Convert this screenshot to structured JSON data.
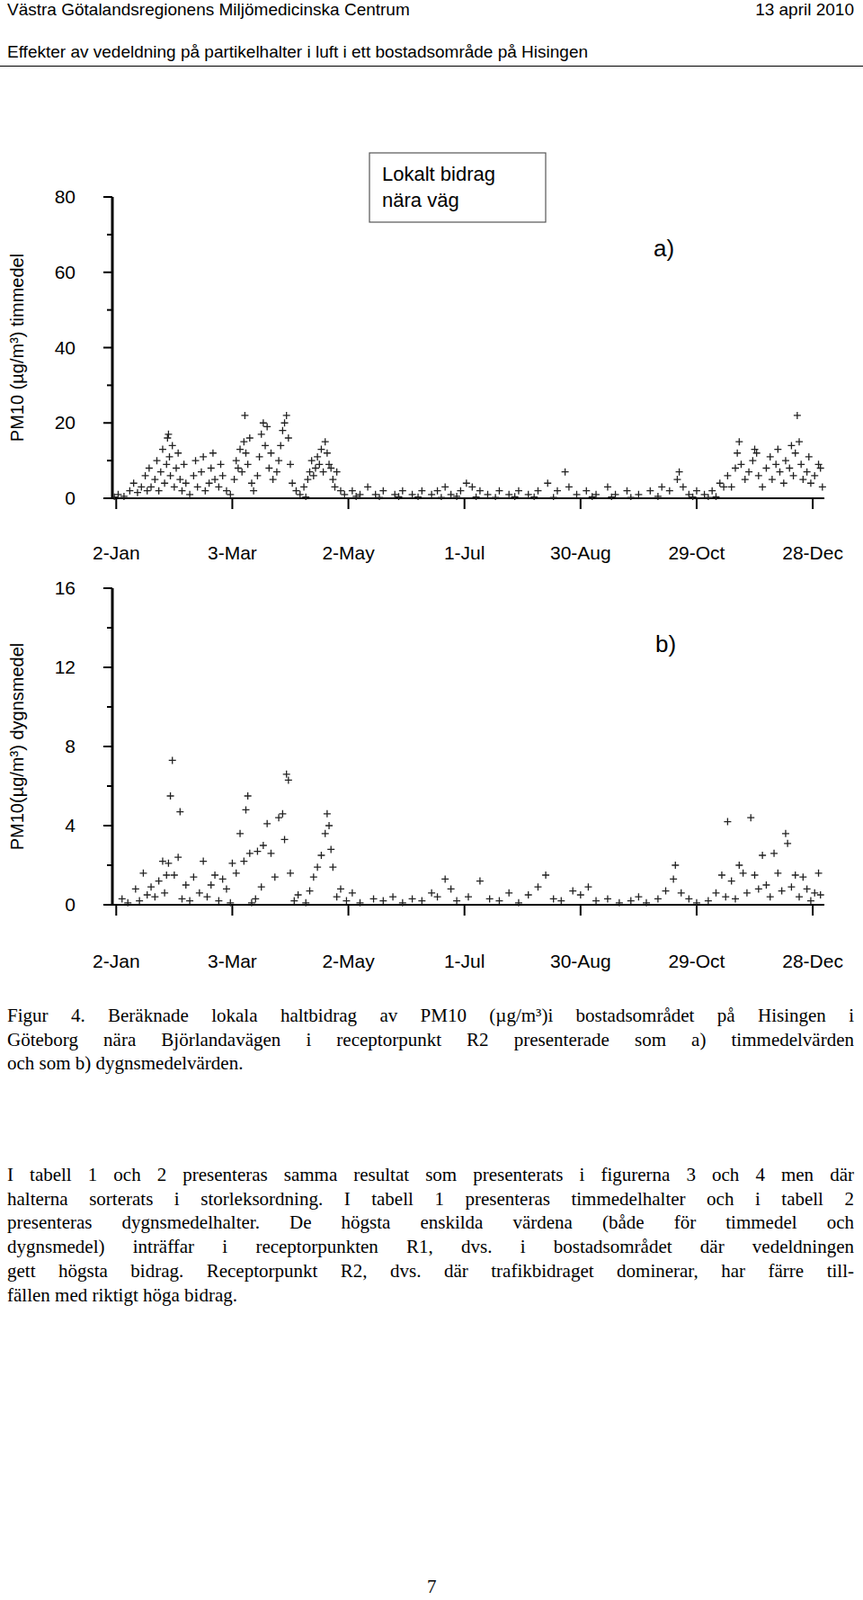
{
  "header": {
    "org": "Västra Götalandsregionens Miljömedicinska Centrum",
    "date": "13 april 2010",
    "subtitle": "Effekter av vedeldning på partikelhalter i luft i ett bostadsområde på Hisingen"
  },
  "chart_data": [
    {
      "type": "scatter",
      "title": "Lokalt bidrag\nnära väg",
      "annotation": "a)",
      "ylabel": "PM10 (µg/m³) timmedel",
      "marker": "plus",
      "color": "#222222",
      "xlim": [
        0,
        368
      ],
      "ylim": [
        0,
        80
      ],
      "xticks": [
        {
          "value": 2,
          "label": "2-Jan"
        },
        {
          "value": 62,
          "label": "3-Mar"
        },
        {
          "value": 122,
          "label": "2-May"
        },
        {
          "value": 182,
          "label": "1-Jul"
        },
        {
          "value": 242,
          "label": "30-Aug"
        },
        {
          "value": 302,
          "label": "29-Oct"
        },
        {
          "value": 362,
          "label": "28-Dec"
        }
      ],
      "yticks": [
        0,
        20,
        40,
        60,
        80
      ],
      "x": [
        3,
        6,
        9,
        11,
        13,
        15,
        17,
        18,
        19,
        20,
        22,
        23,
        24,
        25,
        26,
        27,
        28,
        28.5,
        29,
        29.5,
        30,
        31,
        32,
        33,
        34,
        35,
        36,
        37,
        38,
        40,
        42,
        43,
        44,
        46,
        47,
        48,
        50,
        51,
        52,
        53,
        55,
        56,
        57,
        59,
        61,
        63,
        64,
        65,
        66,
        67,
        68,
        68.5,
        69,
        70,
        71,
        72,
        73,
        75,
        76,
        77,
        78,
        79,
        80,
        81,
        82,
        83,
        85,
        86,
        87,
        88,
        89,
        90,
        91,
        92,
        93,
        95,
        97,
        99,
        101,
        102,
        103,
        104,
        105,
        106,
        107,
        108,
        109,
        110,
        111,
        112,
        113,
        114,
        115,
        116,
        118,
        120,
        124,
        128,
        132,
        136,
        140,
        146,
        150,
        155,
        160,
        165,
        168,
        172,
        175,
        180,
        183,
        186,
        190,
        194,
        200,
        205,
        210,
        215,
        220,
        225,
        230,
        234,
        236,
        240,
        245,
        250,
        256,
        260,
        266,
        272,
        278,
        284,
        288,
        292,
        293,
        295,
        298,
        302,
        306,
        310,
        314,
        316,
        318,
        320,
        322,
        323,
        324,
        325,
        327,
        329,
        331,
        332,
        333,
        334,
        336,
        338,
        340,
        341,
        343,
        344,
        345,
        347,
        348,
        350,
        351,
        352,
        353,
        354,
        355,
        356,
        357,
        359,
        360,
        361,
        363,
        365,
        366,
        367,
        100,
        126,
        138,
        148,
        158,
        170,
        178,
        188,
        198,
        208,
        218,
        228,
        248,
        258,
        268,
        282,
        300,
        308,
        312,
        1
      ],
      "values": [
        1,
        0.5,
        2,
        4,
        1.5,
        3,
        6,
        2,
        8,
        3,
        5,
        10,
        2,
        7,
        13,
        4,
        9,
        16,
        17,
        11,
        6,
        14,
        3,
        8,
        12,
        5,
        2,
        9,
        4,
        1,
        6,
        10,
        3,
        7,
        11,
        2,
        4,
        8,
        12,
        5,
        3,
        9,
        6,
        2,
        1,
        5,
        10,
        8,
        13,
        7,
        15,
        22,
        12,
        9,
        16,
        4,
        2,
        6,
        11,
        17,
        20,
        14,
        19,
        8,
        12,
        5,
        7,
        10,
        14,
        18,
        20,
        22,
        16,
        9,
        4,
        2,
        1,
        3,
        5,
        7,
        10,
        6,
        8,
        11,
        9,
        13,
        7,
        15,
        12,
        9,
        8,
        5,
        3,
        7,
        2,
        1,
        2,
        1,
        3,
        1,
        2,
        1,
        2,
        1,
        2,
        1,
        2,
        3,
        1,
        2,
        4,
        3,
        2,
        1,
        2,
        1,
        2,
        1,
        2,
        4,
        2,
        7,
        3,
        1,
        2,
        1,
        3,
        1,
        2,
        1,
        2,
        3,
        2,
        5,
        7,
        3,
        1,
        2,
        1,
        2,
        4,
        3,
        6,
        3,
        8,
        12,
        15,
        9,
        5,
        7,
        10,
        13,
        12,
        6,
        3,
        8,
        11,
        5,
        9,
        13,
        7,
        4,
        10,
        8,
        14,
        6,
        12,
        22,
        15,
        9,
        5,
        7,
        11,
        4,
        6,
        9,
        8,
        3,
        0.3,
        0.5,
        0.2,
        0.4,
        0.3,
        0.2,
        0.5,
        0.3,
        0.2,
        0.4,
        0.3,
        0.2,
        0.4,
        0.3,
        0.2,
        0.5,
        0.3,
        0.2,
        0.4,
        0.3
      ]
    },
    {
      "type": "scatter",
      "annotation": "b)",
      "ylabel": "PM10(µg/m³) dygnsmedel",
      "marker": "plus",
      "color": "#222222",
      "xlim": [
        0,
        368
      ],
      "ylim": [
        0,
        16
      ],
      "xticks": [
        {
          "value": 2,
          "label": "2-Jan"
        },
        {
          "value": 62,
          "label": "3-Mar"
        },
        {
          "value": 122,
          "label": "2-May"
        },
        {
          "value": 182,
          "label": "1-Jul"
        },
        {
          "value": 242,
          "label": "30-Aug"
        },
        {
          "value": 302,
          "label": "29-Oct"
        },
        {
          "value": 362,
          "label": "28-Dec"
        }
      ],
      "yticks": [
        0,
        4,
        8,
        12,
        16
      ],
      "x": [
        5,
        8,
        12,
        14,
        16,
        18,
        20,
        22,
        24,
        26,
        27,
        28,
        29,
        30,
        31,
        32,
        34,
        35,
        36,
        38,
        40,
        42,
        45,
        47,
        49,
        51,
        53,
        55,
        57,
        59,
        61,
        62,
        64,
        66,
        68,
        69,
        70,
        71,
        72,
        74,
        75,
        77,
        78,
        80,
        82,
        84,
        86,
        88,
        89,
        90,
        91,
        92,
        94,
        96,
        100,
        102,
        104,
        106,
        108,
        110,
        111,
        112,
        113,
        114,
        116,
        118,
        121,
        124,
        128,
        135,
        140,
        145,
        150,
        155,
        160,
        165,
        168,
        172,
        175,
        178,
        184,
        190,
        195,
        200,
        205,
        210,
        215,
        220,
        224,
        228,
        232,
        238,
        242,
        246,
        250,
        256,
        262,
        268,
        272,
        276,
        282,
        286,
        290,
        291,
        294,
        298,
        302,
        308,
        312,
        315,
        317,
        318,
        320,
        322,
        324,
        326,
        328,
        330,
        332,
        334,
        336,
        338,
        340,
        342,
        344,
        346,
        348,
        349,
        351,
        353,
        355,
        357,
        359,
        361,
        363,
        365,
        366
      ],
      "values": [
        0.3,
        0.1,
        0.8,
        0.2,
        1.6,
        0.5,
        0.9,
        0.4,
        1.2,
        2.2,
        0.6,
        1.5,
        2.1,
        5.5,
        7.3,
        1.5,
        2.4,
        4.7,
        0.3,
        1.0,
        0.2,
        1.4,
        0.6,
        2.2,
        0.4,
        1.0,
        1.5,
        0.2,
        1.3,
        0.8,
        0.1,
        2.1,
        1.6,
        3.6,
        2.2,
        4.8,
        5.5,
        2.6,
        0.1,
        0.3,
        2.7,
        0.9,
        3.0,
        4.1,
        2.6,
        1.4,
        4.4,
        4.6,
        3.3,
        6.6,
        6.3,
        1.6,
        0.2,
        0.5,
        0.1,
        0.7,
        1.4,
        1.9,
        2.5,
        3.6,
        4.6,
        4.0,
        2.8,
        1.9,
        0.4,
        0.8,
        0.2,
        0.6,
        0.1,
        0.3,
        0.2,
        0.4,
        0.1,
        0.3,
        0.2,
        0.6,
        0.4,
        1.3,
        0.8,
        0.2,
        0.4,
        1.2,
        0.3,
        0.2,
        0.6,
        0.1,
        0.5,
        0.9,
        1.5,
        0.3,
        0.2,
        0.7,
        0.5,
        0.9,
        0.2,
        0.3,
        0.1,
        0.2,
        0.4,
        0.1,
        0.3,
        0.7,
        1.3,
        2.0,
        0.6,
        0.3,
        0.1,
        0.2,
        0.6,
        1.5,
        0.4,
        4.2,
        1.2,
        0.3,
        2.0,
        1.6,
        0.6,
        4.4,
        1.5,
        0.8,
        2.5,
        1.0,
        0.4,
        2.6,
        1.6,
        0.7,
        3.6,
        3.1,
        0.9,
        1.5,
        0.4,
        1.4,
        0.8,
        0.2,
        0.6,
        1.6,
        0.5
      ]
    }
  ],
  "caption": {
    "label": "Figur 4.",
    "lines": [
      "Beräknade lokala haltbidrag av PM10 (µg/m³)i bostadsområdet på Hisingen i",
      "Göteborg nära Björlandavägen i receptorpunkt R2 presenterade som a) timmedelvärden",
      "och som b) dygnsmedelvärden."
    ]
  },
  "body": {
    "lines": [
      "I tabell 1 och 2 presenteras samma resultat som presenterats i figurerna 3 och 4 men där",
      "halterna sorterats i storleksordning. I tabell 1 presenteras timmedelhalter och i tabell 2",
      "presenteras dygnsmedelhalter. De högsta enskilda värdena (både för timmedel och",
      "dygnsmedel) inträffar i receptorpunkten R1, dvs. i bostadsområdet där vedeldningen",
      "gett högsta bidrag. Receptorpunkt R2, dvs. där trafikbidraget dominerar, har färre till-",
      "fällen med riktigt höga bidrag."
    ]
  },
  "page_number": "7"
}
